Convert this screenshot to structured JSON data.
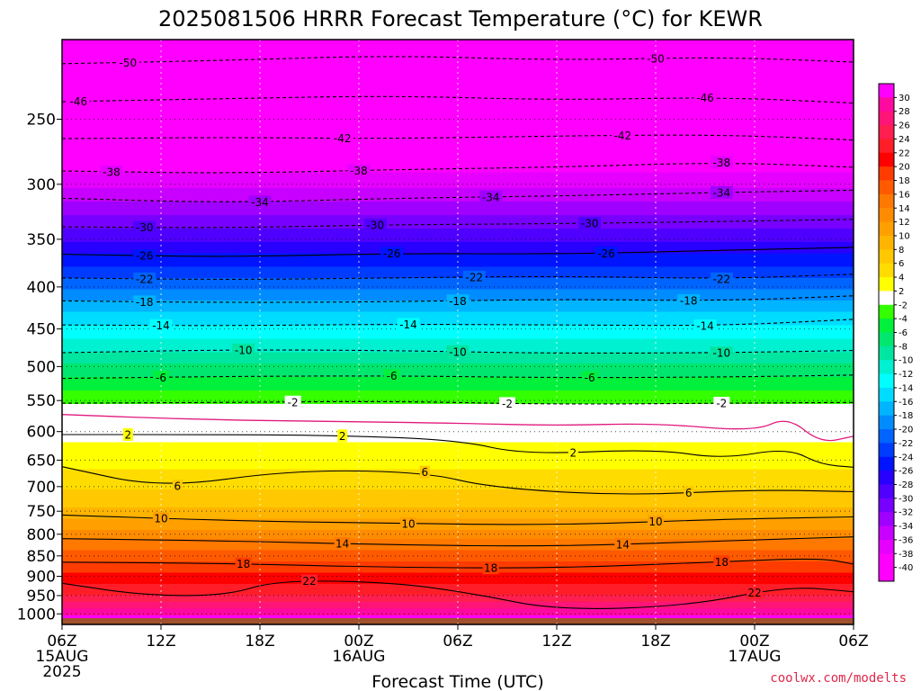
{
  "chart_data": {
    "type": "heatmap",
    "title": "2025081506 HRRR Forecast Temperature (°C) for KEWR",
    "xlabel": "Forecast Time (UTC)",
    "ylabel": "",
    "x_ticks": [
      {
        "hour": 0,
        "lines": [
          "06Z",
          "15AUG",
          "2025"
        ]
      },
      {
        "hour": 6,
        "lines": [
          "12Z"
        ]
      },
      {
        "hour": 12,
        "lines": [
          "18Z"
        ]
      },
      {
        "hour": 18,
        "lines": [
          "00Z",
          "16AUG"
        ]
      },
      {
        "hour": 24,
        "lines": [
          "06Z"
        ]
      },
      {
        "hour": 30,
        "lines": [
          "12Z"
        ]
      },
      {
        "hour": 36,
        "lines": [
          "18Z"
        ]
      },
      {
        "hour": 42,
        "lines": [
          "00Z",
          "17AUG"
        ]
      },
      {
        "hour": 48,
        "lines": [
          "06Z"
        ]
      }
    ],
    "xlim_hours": [
      0,
      48
    ],
    "y_axis": "pressure (hPa), log scale, decreasing upward",
    "y_ticks": [
      250,
      300,
      350,
      400,
      450,
      500,
      550,
      600,
      650,
      700,
      750,
      800,
      850,
      900,
      950,
      1000
    ],
    "ylim": [
      1030,
      200
    ],
    "surface_pressure": 1012,
    "grid": "dotted",
    "colorbar": {
      "labels": [
        30,
        28,
        26,
        24,
        22,
        20,
        18,
        16,
        14,
        12,
        10,
        8,
        6,
        4,
        2,
        -2,
        -4,
        -6,
        -8,
        -10,
        -12,
        -14,
        -16,
        -18,
        -20,
        -22,
        -24,
        -26,
        -28,
        -30,
        -32,
        -34,
        -36,
        -38,
        -40
      ],
      "colors": [
        "#ff00ff",
        "#ff0aa0",
        "#ff1478",
        "#ff1e50",
        "#ff1e28",
        "#ff0000",
        "#ff3c00",
        "#ff5a00",
        "#ff7800",
        "#ff8c00",
        "#ffa000",
        "#ffb400",
        "#ffc800",
        "#ffdc00",
        "#ffff00",
        "#ffffff",
        "#33ff00",
        "#00f03c",
        "#00e66e",
        "#00e6a0",
        "#00f0d2",
        "#00ffff",
        "#00dcff",
        "#00b4ff",
        "#008cff",
        "#0064ff",
        "#003cff",
        "#0014ff",
        "#2800ff",
        "#5000ff",
        "#7800ff",
        "#a000ff",
        "#c800ff",
        "#e600ff",
        "#ff00ff",
        "#ff00ff"
      ]
    },
    "isotherm_profile": [
      {
        "t": 31,
        "p": 1010
      },
      {
        "t": 27,
        "p": 980
      },
      {
        "t": 23,
        "p": 935
      },
      {
        "t": 19.5,
        "p": 885
      },
      {
        "t": 16,
        "p": 835
      },
      {
        "t": 12,
        "p": 790
      },
      {
        "t": 8,
        "p": 740
      },
      {
        "t": 5,
        "p": 690
      },
      {
        "t": 2,
        "p": 620
      },
      {
        "t": 0,
        "p": 575
      },
      {
        "t": -2,
        "p": 555
      },
      {
        "t": -6,
        "p": 515
      },
      {
        "t": -10,
        "p": 480
      },
      {
        "t": -14,
        "p": 445
      },
      {
        "t": -18,
        "p": 415
      },
      {
        "t": -22,
        "p": 390
      },
      {
        "t": -26,
        "p": 365
      },
      {
        "t": -30,
        "p": 340
      },
      {
        "t": -34,
        "p": 315
      },
      {
        "t": -38,
        "p": 290
      },
      {
        "t": -42,
        "p": 265
      },
      {
        "t": -46,
        "p": 240
      },
      {
        "t": -50,
        "p": 215
      },
      {
        "t": -54,
        "p": 195
      }
    ],
    "contours": [
      {
        "value": -50,
        "dashed": true,
        "points": [
          [
            0,
            214
          ],
          [
            10,
            212
          ],
          [
            20,
            209
          ],
          [
            30,
            212
          ],
          [
            40,
            210
          ],
          [
            48,
            213
          ]
        ],
        "labels": [
          [
            4,
            -50
          ],
          [
            36,
            -50
          ]
        ]
      },
      {
        "value": -46,
        "dashed": true,
        "points": [
          [
            0,
            238
          ],
          [
            10,
            236
          ],
          [
            20,
            234
          ],
          [
            30,
            237
          ],
          [
            40,
            235
          ],
          [
            48,
            239
          ]
        ],
        "labels": [
          [
            1,
            -46
          ],
          [
            39,
            -46
          ]
        ]
      },
      {
        "value": -42,
        "dashed": true,
        "points": [
          [
            0,
            264
          ],
          [
            10,
            263
          ],
          [
            20,
            264
          ],
          [
            30,
            262
          ],
          [
            40,
            261
          ],
          [
            48,
            265
          ]
        ],
        "labels": [
          [
            17,
            -42
          ],
          [
            34,
            -42
          ]
        ]
      },
      {
        "value": -38,
        "dashed": true,
        "points": [
          [
            0,
            289
          ],
          [
            10,
            291
          ],
          [
            20,
            288
          ],
          [
            30,
            286
          ],
          [
            40,
            282
          ],
          [
            48,
            286
          ]
        ],
        "labels": [
          [
            3,
            -38
          ],
          [
            18,
            -38
          ],
          [
            40,
            -38
          ]
        ]
      },
      {
        "value": -34,
        "dashed": true,
        "points": [
          [
            0,
            312
          ],
          [
            10,
            316
          ],
          [
            20,
            312
          ],
          [
            30,
            310
          ],
          [
            40,
            307
          ],
          [
            48,
            305
          ]
        ],
        "labels": [
          [
            12,
            -34
          ],
          [
            26,
            -34
          ],
          [
            40,
            -34
          ]
        ]
      },
      {
        "value": -30,
        "dashed": true,
        "points": [
          [
            0,
            338
          ],
          [
            10,
            339
          ],
          [
            20,
            336
          ],
          [
            30,
            335
          ],
          [
            40,
            333
          ],
          [
            48,
            331
          ]
        ],
        "labels": [
          [
            5,
            -30
          ],
          [
            19,
            -30
          ],
          [
            32,
            -30
          ]
        ]
      },
      {
        "value": -26,
        "dashed": false,
        "points": [
          [
            0,
            365
          ],
          [
            10,
            368
          ],
          [
            20,
            364
          ],
          [
            30,
            365
          ],
          [
            40,
            361
          ],
          [
            48,
            358
          ]
        ],
        "labels": [
          [
            5,
            -26
          ],
          [
            20,
            -26
          ],
          [
            33,
            -26
          ]
        ]
      },
      {
        "value": -22,
        "dashed": true,
        "points": [
          [
            0,
            390
          ],
          [
            10,
            392
          ],
          [
            20,
            390
          ],
          [
            30,
            388
          ],
          [
            40,
            391
          ],
          [
            48,
            386
          ]
        ],
        "labels": [
          [
            5,
            -22
          ],
          [
            25,
            -22
          ],
          [
            40,
            -22
          ]
        ]
      },
      {
        "value": -18,
        "dashed": true,
        "points": [
          [
            0,
            416
          ],
          [
            10,
            418
          ],
          [
            20,
            417
          ],
          [
            30,
            414
          ],
          [
            40,
            416
          ],
          [
            48,
            410
          ]
        ],
        "labels": [
          [
            5,
            -18
          ],
          [
            24,
            -18
          ],
          [
            38,
            -18
          ]
        ]
      },
      {
        "value": -14,
        "dashed": true,
        "points": [
          [
            0,
            445
          ],
          [
            10,
            446
          ],
          [
            20,
            444
          ],
          [
            30,
            445
          ],
          [
            40,
            446
          ],
          [
            48,
            438
          ]
        ],
        "labels": [
          [
            6,
            -14
          ],
          [
            21,
            -14
          ],
          [
            39,
            -14
          ]
        ]
      },
      {
        "value": -10,
        "dashed": true,
        "points": [
          [
            0,
            481
          ],
          [
            10,
            477
          ],
          [
            20,
            478
          ],
          [
            30,
            482
          ],
          [
            40,
            481
          ],
          [
            48,
            478
          ]
        ],
        "labels": [
          [
            11,
            -10
          ],
          [
            24,
            -10
          ],
          [
            40,
            -10
          ]
        ]
      },
      {
        "value": -6,
        "dashed": true,
        "points": [
          [
            0,
            517
          ],
          [
            10,
            514
          ],
          [
            20,
            513
          ],
          [
            30,
            516
          ],
          [
            40,
            515
          ],
          [
            48,
            512
          ]
        ],
        "labels": [
          [
            6,
            -6
          ],
          [
            20,
            -6
          ],
          [
            32,
            -6
          ]
        ]
      },
      {
        "value": -2,
        "dashed": true,
        "points": [
          [
            0,
            554
          ],
          [
            10,
            553
          ],
          [
            20,
            551
          ],
          [
            30,
            556
          ],
          [
            40,
            554
          ],
          [
            48,
            553
          ]
        ],
        "labels": [
          [
            14,
            -2
          ],
          [
            27,
            -2
          ],
          [
            40,
            -2
          ]
        ]
      },
      {
        "value": 0,
        "dashed": false,
        "color": "#e0197d",
        "points": [
          [
            0,
            572
          ],
          [
            8,
            580
          ],
          [
            16,
            583
          ],
          [
            24,
            586
          ],
          [
            30,
            590
          ],
          [
            36,
            586
          ],
          [
            42,
            600
          ],
          [
            44,
            575
          ],
          [
            46,
            620
          ],
          [
            48,
            608
          ]
        ],
        "labels": []
      },
      {
        "value": 2,
        "dashed": false,
        "points": [
          [
            0,
            605
          ],
          [
            8,
            605
          ],
          [
            16,
            606
          ],
          [
            24,
            614
          ],
          [
            28,
            640
          ],
          [
            36,
            630
          ],
          [
            40,
            648
          ],
          [
            44,
            628
          ],
          [
            46,
            658
          ],
          [
            48,
            663
          ]
        ],
        "labels": [
          [
            4,
            2
          ],
          [
            17,
            2
          ],
          [
            31,
            2
          ]
        ]
      },
      {
        "value": 6,
        "dashed": false,
        "points": [
          [
            0,
            662
          ],
          [
            6,
            703
          ],
          [
            14,
            668
          ],
          [
            22,
            672
          ],
          [
            26,
            702
          ],
          [
            34,
            718
          ],
          [
            42,
            706
          ],
          [
            48,
            710
          ]
        ],
        "labels": [
          [
            7,
            6
          ],
          [
            22,
            6
          ],
          [
            38,
            6
          ]
        ]
      },
      {
        "value": 10,
        "dashed": false,
        "points": [
          [
            0,
            758
          ],
          [
            10,
            770
          ],
          [
            20,
            776
          ],
          [
            30,
            780
          ],
          [
            40,
            767
          ],
          [
            48,
            762
          ]
        ],
        "labels": [
          [
            6,
            10
          ],
          [
            21,
            10
          ],
          [
            36,
            10
          ]
        ]
      },
      {
        "value": 14,
        "dashed": false,
        "points": [
          [
            0,
            810
          ],
          [
            10,
            815
          ],
          [
            20,
            824
          ],
          [
            30,
            828
          ],
          [
            40,
            815
          ],
          [
            48,
            806
          ]
        ],
        "labels": [
          [
            17,
            14
          ],
          [
            34,
            14
          ]
        ]
      },
      {
        "value": 18,
        "dashed": false,
        "points": [
          [
            0,
            865
          ],
          [
            10,
            868
          ],
          [
            20,
            878
          ],
          [
            30,
            880
          ],
          [
            40,
            864
          ],
          [
            46,
            855
          ],
          [
            48,
            870
          ]
        ],
        "labels": [
          [
            11,
            18
          ],
          [
            26,
            18
          ],
          [
            40,
            18
          ]
        ]
      },
      {
        "value": 22,
        "dashed": false,
        "points": [
          [
            0,
            918
          ],
          [
            5,
            950
          ],
          [
            10,
            950
          ],
          [
            13,
            910
          ],
          [
            20,
            915
          ],
          [
            25,
            945
          ],
          [
            30,
            990
          ],
          [
            38,
            978
          ],
          [
            44,
            925
          ],
          [
            48,
            940
          ]
        ],
        "labels": [
          [
            15,
            22
          ],
          [
            42,
            22
          ]
        ]
      }
    ]
  },
  "credit": "coolwx.com/modelts"
}
